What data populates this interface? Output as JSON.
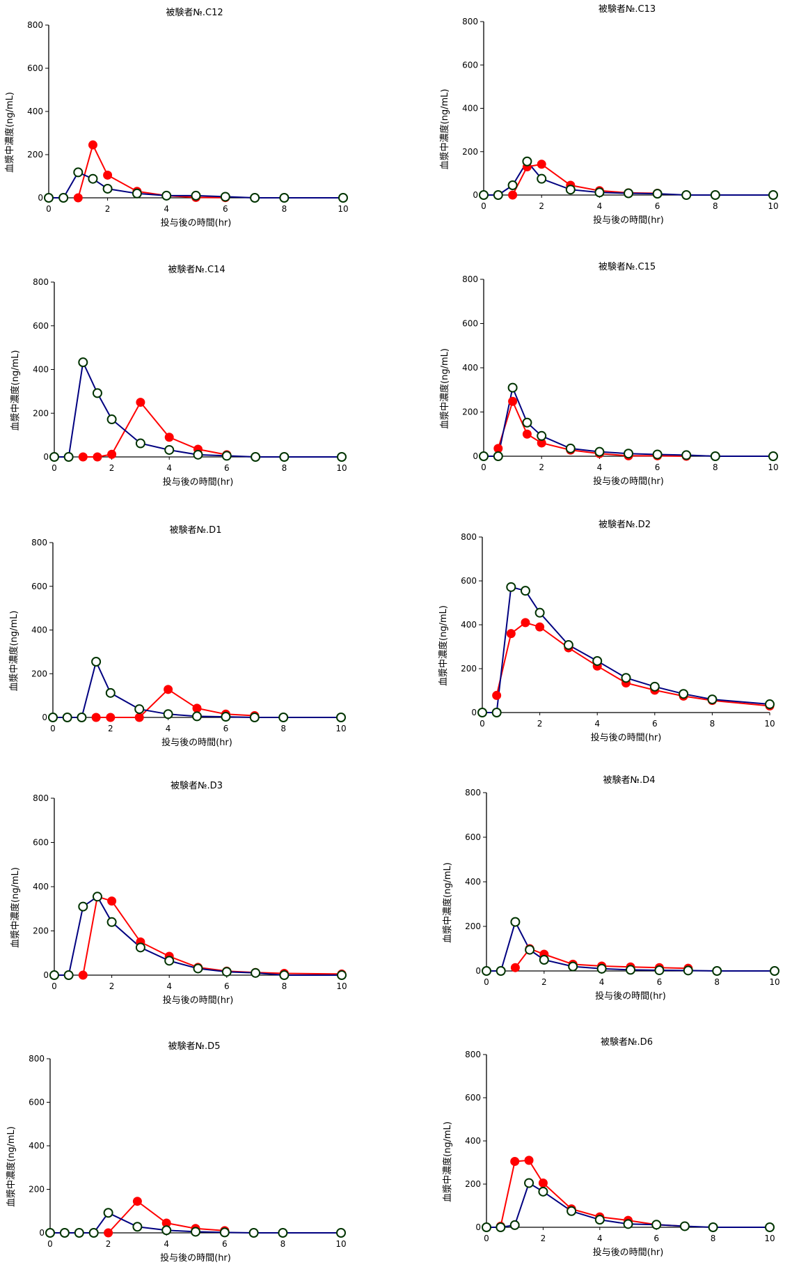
{
  "colors": {
    "red_series": "#ff0000",
    "blue_series": "#000080",
    "open_marker_fill": "#ffffff",
    "open_marker_stroke": "#003300"
  },
  "chart_data": [
    {
      "type": "line",
      "title": "被験者№.C12",
      "xlabel": "投与後の時間(hr)",
      "ylabel": "血漿中濃度(ng/mL)",
      "xlim": [
        0,
        10
      ],
      "ylim": [
        0,
        800
      ],
      "xticks": [
        0,
        2,
        4,
        6,
        8,
        10
      ],
      "yticks": [
        0,
        200,
        400,
        600,
        800
      ],
      "series": [
        {
          "color": "#ff0000",
          "marker": "filled",
          "x": [
            1,
            1.5,
            2,
            3,
            4,
            5,
            6
          ],
          "y": [
            0,
            245,
            105,
            30,
            10,
            2,
            1
          ]
        },
        {
          "color": "#000080",
          "marker": "open",
          "x": [
            0,
            0.5,
            1,
            1.5,
            2,
            3,
            4,
            5,
            6,
            7,
            8,
            10
          ],
          "y": [
            0,
            0,
            118,
            88,
            42,
            20,
            10,
            10,
            5,
            0,
            0,
            0
          ]
        }
      ]
    },
    {
      "type": "line",
      "title": "被験者№.C13",
      "xlabel": "投与後の時間(hr)",
      "ylabel": "血漿中濃度(ng/mL)",
      "xlim": [
        0,
        10
      ],
      "ylim": [
        0,
        800
      ],
      "xticks": [
        0,
        2,
        4,
        6,
        8,
        10
      ],
      "yticks": [
        0,
        200,
        400,
        600,
        800
      ],
      "series": [
        {
          "color": "#ff0000",
          "marker": "filled",
          "x": [
            1,
            1.5,
            2,
            3,
            4,
            5,
            6
          ],
          "y": [
            0,
            130,
            142,
            45,
            20,
            10,
            8
          ]
        },
        {
          "color": "#000080",
          "marker": "open",
          "x": [
            0,
            0.5,
            1,
            1.5,
            2,
            3,
            4,
            5,
            6,
            7,
            8,
            10
          ],
          "y": [
            0,
            0,
            45,
            155,
            75,
            25,
            12,
            8,
            6,
            0,
            0,
            0
          ]
        }
      ]
    },
    {
      "type": "line",
      "title": "被験者№.C14",
      "xlabel": "投与後の時間(hr)",
      "ylabel": "血漿中濃度(ng/mL)",
      "xlim": [
        0,
        10
      ],
      "ylim": [
        0,
        800
      ],
      "xticks": [
        0,
        2,
        4,
        6,
        8,
        10
      ],
      "yticks": [
        0,
        200,
        400,
        600,
        800
      ],
      "series": [
        {
          "color": "#ff0000",
          "marker": "filled",
          "x": [
            1,
            1.5,
            2,
            3,
            4,
            5,
            6
          ],
          "y": [
            0,
            0,
            12,
            250,
            90,
            35,
            10
          ]
        },
        {
          "color": "#000080",
          "marker": "open",
          "x": [
            0,
            0.5,
            1,
            1.5,
            2,
            3,
            4,
            5,
            6,
            7,
            8,
            10
          ],
          "y": [
            0,
            0,
            433,
            292,
            172,
            62,
            32,
            10,
            5,
            0,
            0,
            0
          ]
        }
      ]
    },
    {
      "type": "line",
      "title": "被験者№.C15",
      "xlabel": "投与後の時間(hr)",
      "ylabel": "血漿中濃度(ng/mL)",
      "xlim": [
        0,
        10
      ],
      "ylim": [
        0,
        800
      ],
      "xticks": [
        0,
        2,
        4,
        6,
        8,
        10
      ],
      "yticks": [
        0,
        200,
        400,
        600,
        800
      ],
      "series": [
        {
          "color": "#ff0000",
          "marker": "filled",
          "x": [
            0.5,
            1,
            1.5,
            2,
            3,
            4,
            5,
            6,
            7
          ],
          "y": [
            35,
            248,
            100,
            60,
            28,
            12,
            2,
            2,
            0
          ]
        },
        {
          "color": "#000080",
          "marker": "open",
          "x": [
            0,
            0.5,
            1,
            1.5,
            2,
            3,
            4,
            5,
            6,
            7,
            8,
            10
          ],
          "y": [
            0,
            0,
            310,
            152,
            92,
            35,
            20,
            12,
            8,
            5,
            0,
            0
          ]
        }
      ]
    },
    {
      "type": "line",
      "title": "被験者№.D1",
      "xlabel": "投与後の時間(hr)",
      "ylabel": "血漿中濃度(ng/mL)",
      "xlim": [
        0,
        10
      ],
      "ylim": [
        0,
        800
      ],
      "xticks": [
        0,
        2,
        4,
        6,
        8,
        10
      ],
      "yticks": [
        0,
        200,
        400,
        600,
        800
      ],
      "series": [
        {
          "color": "#ff0000",
          "marker": "filled",
          "x": [
            1.5,
            2,
            3,
            4,
            5,
            6,
            7
          ],
          "y": [
            0,
            0,
            0,
            128,
            42,
            15,
            8
          ]
        },
        {
          "color": "#000080",
          "marker": "open",
          "x": [
            0,
            0.5,
            1,
            1.5,
            2,
            3,
            4,
            5,
            6,
            7,
            8,
            10
          ],
          "y": [
            0,
            0,
            0,
            255,
            112,
            38,
            15,
            5,
            3,
            0,
            0,
            0
          ]
        }
      ]
    },
    {
      "type": "line",
      "title": "被験者№.D2",
      "xlabel": "投与後の時間(hr)",
      "ylabel": "血漿中濃度(ng/mL)",
      "xlim": [
        0,
        10
      ],
      "ylim": [
        0,
        800
      ],
      "xticks": [
        0,
        2,
        4,
        6,
        8,
        10
      ],
      "yticks": [
        0,
        200,
        400,
        600,
        800
      ],
      "series": [
        {
          "color": "#ff0000",
          "marker": "filled",
          "x": [
            0.5,
            1,
            1.5,
            2,
            3,
            4,
            5,
            6,
            7,
            8,
            10
          ],
          "y": [
            78,
            360,
            410,
            390,
            295,
            212,
            135,
            102,
            75,
            55,
            30
          ]
        },
        {
          "color": "#000080",
          "marker": "open",
          "x": [
            0,
            0.5,
            1,
            1.5,
            2,
            3,
            4,
            5,
            6,
            7,
            8,
            10
          ],
          "y": [
            0,
            0,
            572,
            555,
            455,
            308,
            235,
            158,
            118,
            85,
            60,
            38
          ]
        }
      ]
    },
    {
      "type": "line",
      "title": "被験者№.D3",
      "xlabel": "投与後の時間(hr)",
      "ylabel": "血漿中濃度(ng/mL)",
      "xlim": [
        0,
        10
      ],
      "ylim": [
        0,
        800
      ],
      "xticks": [
        0,
        2,
        4,
        6,
        8,
        10
      ],
      "yticks": [
        0,
        200,
        400,
        600,
        800
      ],
      "series": [
        {
          "color": "#ff0000",
          "marker": "filled",
          "x": [
            1,
            1.5,
            2,
            3,
            4,
            5,
            6,
            7,
            8,
            10
          ],
          "y": [
            0,
            355,
            335,
            150,
            85,
            35,
            18,
            12,
            8,
            5
          ]
        },
        {
          "color": "#000080",
          "marker": "open",
          "x": [
            0,
            0.5,
            1,
            1.5,
            2,
            3,
            4,
            5,
            6,
            7,
            8,
            10
          ],
          "y": [
            0,
            0,
            310,
            355,
            240,
            125,
            65,
            30,
            15,
            10,
            0,
            0
          ]
        }
      ]
    },
    {
      "type": "line",
      "title": "被験者№.D4",
      "xlabel": "投与後の時間(hr)",
      "ylabel": "血漿中濃度(ng/mL)",
      "xlim": [
        0,
        10
      ],
      "ylim": [
        0,
        800
      ],
      "xticks": [
        0,
        2,
        4,
        6,
        8,
        10
      ],
      "yticks": [
        0,
        200,
        400,
        600,
        800
      ],
      "series": [
        {
          "color": "#ff0000",
          "marker": "filled",
          "x": [
            1,
            1.5,
            2,
            3,
            4,
            5,
            6,
            7
          ],
          "y": [
            15,
            100,
            75,
            30,
            22,
            18,
            15,
            12
          ]
        },
        {
          "color": "#000080",
          "marker": "open",
          "x": [
            0,
            0.5,
            1,
            1.5,
            2,
            3,
            4,
            5,
            6,
            7,
            8,
            10
          ],
          "y": [
            0,
            0,
            220,
            95,
            50,
            20,
            10,
            5,
            3,
            2,
            0,
            0
          ]
        }
      ]
    },
    {
      "type": "line",
      "title": "被験者№.D5",
      "xlabel": "投与後の時間(hr)",
      "ylabel": "血漿中濃度(ng/mL)",
      "xlim": [
        0,
        10
      ],
      "ylim": [
        0,
        800
      ],
      "xticks": [
        0,
        2,
        4,
        6,
        8,
        10
      ],
      "yticks": [
        0,
        200,
        400,
        600,
        800
      ],
      "series": [
        {
          "color": "#ff0000",
          "marker": "filled",
          "x": [
            2,
            3,
            4,
            5,
            6
          ],
          "y": [
            0,
            145,
            45,
            20,
            10
          ]
        },
        {
          "color": "#000080",
          "marker": "open",
          "x": [
            0,
            0.5,
            1,
            1.5,
            2,
            3,
            4,
            5,
            6,
            7,
            8,
            10
          ],
          "y": [
            0,
            0,
            0,
            0,
            92,
            28,
            12,
            5,
            2,
            0,
            0,
            0
          ]
        }
      ]
    },
    {
      "type": "line",
      "title": "被験者№.D6",
      "xlabel": "投与後の時間(hr)",
      "ylabel": "血漿中濃度(ng/mL)",
      "xlim": [
        0,
        10
      ],
      "ylim": [
        0,
        800
      ],
      "xticks": [
        0,
        2,
        4,
        6,
        8,
        10
      ],
      "yticks": [
        0,
        200,
        400,
        600,
        800
      ],
      "series": [
        {
          "color": "#ff0000",
          "marker": "filled",
          "x": [
            0.5,
            1,
            1.5,
            2,
            3,
            4,
            5,
            6,
            7
          ],
          "y": [
            5,
            305,
            310,
            205,
            85,
            48,
            32,
            12,
            5
          ]
        },
        {
          "color": "#000080",
          "marker": "open",
          "x": [
            0,
            0.5,
            1,
            1.5,
            2,
            3,
            4,
            5,
            6,
            7,
            8,
            10
          ],
          "y": [
            0,
            0,
            10,
            205,
            165,
            75,
            35,
            15,
            12,
            5,
            0,
            0
          ]
        }
      ]
    }
  ]
}
